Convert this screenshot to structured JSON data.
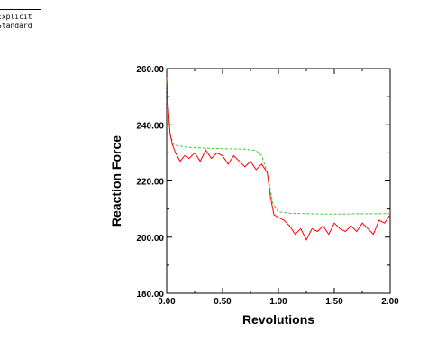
{
  "legend": {
    "entries": [
      "Explicit",
      "Standard"
    ]
  },
  "chart_data": {
    "type": "line",
    "xlabel": "Revolutions",
    "ylabel": "Reaction Force",
    "xlim": [
      0,
      2
    ],
    "ylim": [
      180,
      260
    ],
    "x_ticks": [
      "0.00",
      "0.50",
      "1.00",
      "1.50",
      "2.00"
    ],
    "y_ticks": [
      "180.00",
      "200.00",
      "220.00",
      "240.00",
      "260.00"
    ],
    "grid": false,
    "series": [
      {
        "name": "Explicit",
        "color": "#ff0000",
        "style": "solid",
        "x": [
          0,
          0.01,
          0.02,
          0.03,
          0.05,
          0.08,
          0.12,
          0.16,
          0.2,
          0.25,
          0.3,
          0.35,
          0.4,
          0.45,
          0.5,
          0.55,
          0.6,
          0.65,
          0.7,
          0.75,
          0.8,
          0.85,
          0.9,
          0.93,
          0.96,
          1.0,
          1.05,
          1.1,
          1.15,
          1.2,
          1.25,
          1.3,
          1.35,
          1.4,
          1.45,
          1.5,
          1.55,
          1.6,
          1.65,
          1.7,
          1.75,
          1.8,
          1.85,
          1.9,
          1.95,
          2.0
        ],
        "y": [
          257,
          249,
          243,
          237,
          233,
          230,
          227,
          229,
          228,
          230,
          227,
          231,
          228,
          230,
          229,
          226,
          229,
          227,
          225,
          227,
          224,
          226,
          223,
          214,
          208,
          207,
          206,
          204,
          201,
          203,
          199,
          203,
          202,
          204,
          201,
          205,
          203,
          202,
          204,
          202,
          205,
          203,
          201,
          206,
          205,
          208
        ]
      },
      {
        "name": "Standard",
        "color": "#33cc33",
        "style": "dashed",
        "x": [
          0,
          0.01,
          0.03,
          0.06,
          0.1,
          0.2,
          0.3,
          0.4,
          0.5,
          0.6,
          0.7,
          0.8,
          0.85,
          0.9,
          0.95,
          1.0,
          1.1,
          1.2,
          1.3,
          1.4,
          1.5,
          1.6,
          1.7,
          1.8,
          1.9,
          2.0
        ],
        "y": [
          256,
          246,
          237,
          233,
          232.5,
          232,
          231.8,
          231.6,
          231.5,
          231.4,
          231.3,
          230.8,
          229,
          223,
          212,
          209,
          208.5,
          208.4,
          208.3,
          208.2,
          208.2,
          208.2,
          208.3,
          208.3,
          208.3,
          208.4
        ]
      }
    ]
  }
}
